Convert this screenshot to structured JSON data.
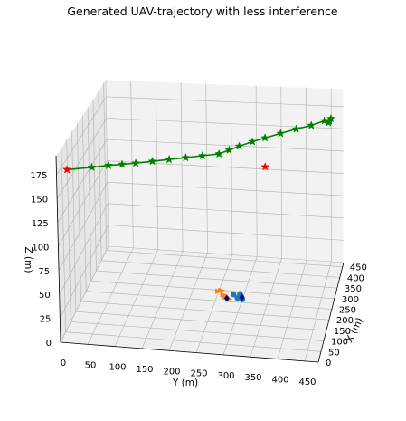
{
  "chart_data": {
    "type": "scatter",
    "projection": "3d",
    "title": "Generated UAV-trajectory with less interference",
    "xlabel": "Y (m)",
    "ylabel": "X (m)",
    "zlabel": "Z (m)",
    "y_axis_ticks": [
      "0",
      "50",
      "100",
      "150",
      "200",
      "250",
      "300",
      "350",
      "400",
      "450"
    ],
    "x_axis_ticks": [
      "0",
      "50",
      "100",
      "150",
      "200",
      "250",
      "300",
      "350",
      "400",
      "450"
    ],
    "z_axis_ticks": [
      "0",
      "25",
      "50",
      "75",
      "100",
      "125",
      "150",
      "175"
    ],
    "grid": true,
    "colors": {
      "trajectory": "#008000",
      "endpoint": "#ff0000",
      "orange_cluster": "#ff7f0e",
      "blue_cluster": "#1f77b4",
      "navy_marker": "#000080"
    },
    "series": [
      {
        "marker": "star",
        "color": "#008000",
        "points": [
          {
            "y": 20,
            "x": 5,
            "z": 180
          },
          {
            "y": 65,
            "x": 25,
            "z": 180
          },
          {
            "y": 95,
            "x": 40,
            "z": 180
          },
          {
            "y": 120,
            "x": 50,
            "z": 180
          },
          {
            "y": 145,
            "x": 60,
            "z": 180
          },
          {
            "y": 175,
            "x": 75,
            "z": 180
          },
          {
            "y": 205,
            "x": 90,
            "z": 180
          },
          {
            "y": 235,
            "x": 105,
            "z": 180
          },
          {
            "y": 265,
            "x": 120,
            "z": 180
          },
          {
            "y": 295,
            "x": 135,
            "z": 180
          },
          {
            "y": 310,
            "x": 160,
            "z": 180
          },
          {
            "y": 325,
            "x": 185,
            "z": 180
          },
          {
            "y": 345,
            "x": 215,
            "z": 180
          },
          {
            "y": 365,
            "x": 240,
            "z": 180
          },
          {
            "y": 390,
            "x": 270,
            "z": 180
          },
          {
            "y": 415,
            "x": 300,
            "z": 180
          },
          {
            "y": 440,
            "x": 325,
            "z": 180
          },
          {
            "y": 460,
            "x": 355,
            "z": 180
          },
          {
            "y": 470,
            "x": 370,
            "z": 180
          },
          {
            "y": 470,
            "x": 355,
            "z": 180
          },
          {
            "y": 470,
            "x": 345,
            "z": 180
          }
        ]
      },
      {
        "marker": "star",
        "color": "#ff0000",
        "points": [
          {
            "y": 20,
            "x": 5,
            "z": 180
          },
          {
            "y": 400,
            "x": 70,
            "z": 180
          }
        ]
      },
      {
        "marker": "triangle",
        "color": "#ff7f0e",
        "points": [
          {
            "y": 255,
            "x": 300,
            "z": 0
          },
          {
            "y": 250,
            "x": 295,
            "z": 0
          },
          {
            "y": 262,
            "x": 280,
            "z": 0
          },
          {
            "y": 268,
            "x": 270,
            "z": 0
          },
          {
            "y": 275,
            "x": 262,
            "z": 0
          }
        ]
      },
      {
        "marker": "circle",
        "color": "#1f77b4",
        "points": [
          {
            "y": 280,
            "x": 285,
            "z": 0
          },
          {
            "y": 290,
            "x": 270,
            "z": 0
          },
          {
            "y": 295,
            "x": 280,
            "z": 0
          },
          {
            "y": 300,
            "x": 265,
            "z": 0
          },
          {
            "y": 292,
            "x": 290,
            "z": 0
          }
        ]
      },
      {
        "marker": "diamond",
        "color": "#000080",
        "points": [
          {
            "y": 270,
            "x": 265,
            "z": 0
          },
          {
            "y": 298,
            "x": 275,
            "z": 0
          }
        ]
      }
    ]
  }
}
